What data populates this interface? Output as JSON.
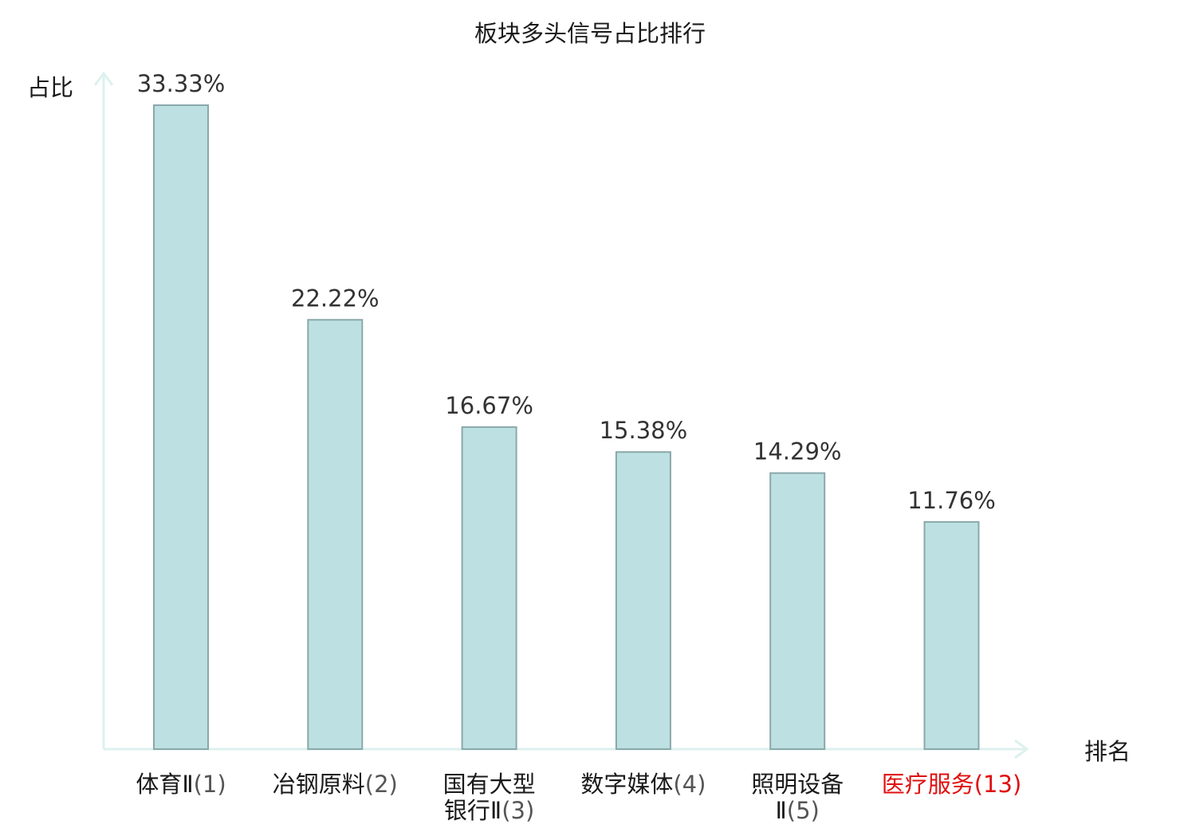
{
  "chart_data": {
    "type": "bar",
    "title": "板块多头信号占比排行",
    "ylabel": "占比",
    "xlabel": "排名",
    "ylim": [
      0,
      35
    ],
    "grid": false,
    "categories": [
      {
        "lines": [
          {
            "name": "体育Ⅱ",
            "rank": "(1)"
          }
        ]
      },
      {
        "lines": [
          {
            "name": "冶钢原料",
            "rank": "(2)"
          }
        ]
      },
      {
        "lines": [
          {
            "name": "国有大型",
            "rank": ""
          },
          {
            "name": "银行Ⅱ",
            "rank": "(3)"
          }
        ]
      },
      {
        "lines": [
          {
            "name": "数字媒体",
            "rank": "(4)"
          }
        ]
      },
      {
        "lines": [
          {
            "name": "照明设备",
            "rank": ""
          },
          {
            "name": "Ⅱ",
            "rank": "(5)"
          }
        ]
      },
      {
        "lines": [
          {
            "name": "医疗服务",
            "rank": "(13)"
          }
        ],
        "highlight": true
      }
    ],
    "values": [
      33.33,
      22.22,
      16.67,
      15.38,
      14.29,
      11.76
    ],
    "value_labels": [
      "33.33%",
      "22.22%",
      "16.67%",
      "15.38%",
      "14.29%",
      "11.76%"
    ]
  },
  "colors": {
    "bar_fill": "#bde0e2",
    "bar_stroke": "#8aa8aa",
    "axis": "#ddf1ee",
    "text": "#1a1a1a",
    "value_text": "#333333",
    "rank_text": "#555555",
    "highlight": "#e01010"
  }
}
